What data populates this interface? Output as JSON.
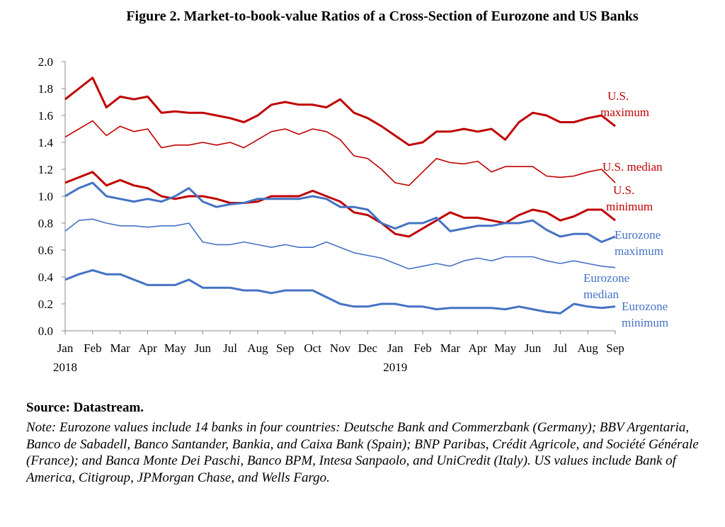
{
  "chart_data": {
    "type": "line",
    "title": "Figure 2. Market-to-book-value Ratios of a Cross-Section of Eurozone and US Banks",
    "xlabel": "",
    "ylabel": "",
    "ylim": [
      0,
      2.0
    ],
    "yticks": [
      "0.0",
      "0.2",
      "0.4",
      "0.6",
      "0.8",
      "1.0",
      "1.2",
      "1.4",
      "1.6",
      "1.8",
      "2.0"
    ],
    "xticks": [
      "Jan",
      "Feb",
      "Mar",
      "Apr",
      "May",
      "Jun",
      "Jul",
      "Aug",
      "Sep",
      "Oct",
      "Nov",
      "Dec",
      "Jan",
      "Feb",
      "Mar",
      "Apr",
      "May",
      "Jun",
      "Jul",
      "Aug",
      "Sep"
    ],
    "year_labels": [
      {
        "label": "2018",
        "month_index": 0
      },
      {
        "label": "2019",
        "month_index": 12
      }
    ],
    "x_unit": "months since Jan 2018 (semi-monthly samples)",
    "x_step": 0.5,
    "grid": false,
    "series": [
      {
        "name": "U.S. maximum",
        "color": "#C00000",
        "weight": "thick",
        "values": [
          1.72,
          1.8,
          1.88,
          1.66,
          1.74,
          1.72,
          1.74,
          1.62,
          1.63,
          1.62,
          1.62,
          1.6,
          1.58,
          1.55,
          1.6,
          1.68,
          1.7,
          1.68,
          1.68,
          1.66,
          1.72,
          1.62,
          1.58,
          1.52,
          1.45,
          1.38,
          1.4,
          1.48,
          1.48,
          1.5,
          1.48,
          1.5,
          1.42,
          1.55,
          1.62,
          1.6,
          1.55,
          1.55,
          1.58,
          1.6,
          1.52
        ]
      },
      {
        "name": "U.S. median",
        "color": "#C00000",
        "weight": "thin",
        "values": [
          1.44,
          1.5,
          1.56,
          1.45,
          1.52,
          1.48,
          1.5,
          1.36,
          1.38,
          1.38,
          1.4,
          1.38,
          1.4,
          1.36,
          1.42,
          1.48,
          1.5,
          1.46,
          1.5,
          1.48,
          1.42,
          1.3,
          1.28,
          1.2,
          1.1,
          1.08,
          1.18,
          1.28,
          1.25,
          1.24,
          1.26,
          1.18,
          1.22,
          1.22,
          1.22,
          1.15,
          1.14,
          1.15,
          1.18,
          1.2,
          1.1
        ]
      },
      {
        "name": "U.S. minimum",
        "color": "#C00000",
        "weight": "thick",
        "values": [
          1.1,
          1.14,
          1.18,
          1.08,
          1.12,
          1.08,
          1.06,
          1.0,
          0.98,
          1.0,
          1.0,
          0.98,
          0.95,
          0.95,
          0.96,
          1.0,
          1.0,
          1.0,
          1.04,
          1.0,
          0.96,
          0.88,
          0.86,
          0.8,
          0.72,
          0.7,
          0.76,
          0.82,
          0.88,
          0.84,
          0.84,
          0.82,
          0.8,
          0.86,
          0.9,
          0.88,
          0.82,
          0.85,
          0.9,
          0.9,
          0.82
        ]
      },
      {
        "name": "Eurozone maximum",
        "color": "#4472C4",
        "weight": "thick",
        "values": [
          1.0,
          1.06,
          1.1,
          1.0,
          0.98,
          0.96,
          0.98,
          0.96,
          1.0,
          1.06,
          0.96,
          0.92,
          0.94,
          0.95,
          0.98,
          0.98,
          0.98,
          0.98,
          1.0,
          0.98,
          0.92,
          0.92,
          0.9,
          0.8,
          0.76,
          0.8,
          0.8,
          0.84,
          0.74,
          0.76,
          0.78,
          0.78,
          0.8,
          0.8,
          0.82,
          0.75,
          0.7,
          0.72,
          0.72,
          0.66,
          0.7
        ]
      },
      {
        "name": "Eurozone median",
        "color": "#4472C4",
        "weight": "thin",
        "values": [
          0.74,
          0.82,
          0.83,
          0.8,
          0.78,
          0.78,
          0.77,
          0.78,
          0.78,
          0.8,
          0.66,
          0.64,
          0.64,
          0.66,
          0.64,
          0.62,
          0.64,
          0.62,
          0.62,
          0.66,
          0.62,
          0.58,
          0.56,
          0.54,
          0.5,
          0.46,
          0.48,
          0.5,
          0.48,
          0.52,
          0.54,
          0.52,
          0.55,
          0.55,
          0.55,
          0.52,
          0.5,
          0.52,
          0.5,
          0.48,
          0.47
        ]
      },
      {
        "name": "Eurozone minimum",
        "color": "#4472C4",
        "weight": "thick",
        "values": [
          0.38,
          0.42,
          0.45,
          0.42,
          0.42,
          0.38,
          0.34,
          0.34,
          0.34,
          0.38,
          0.32,
          0.32,
          0.32,
          0.3,
          0.3,
          0.28,
          0.3,
          0.3,
          0.3,
          0.25,
          0.2,
          0.18,
          0.18,
          0.2,
          0.2,
          0.18,
          0.18,
          0.16,
          0.17,
          0.17,
          0.17,
          0.17,
          0.16,
          0.18,
          0.16,
          0.14,
          0.13,
          0.2,
          0.18,
          0.17,
          0.18
        ]
      }
    ],
    "series_labels": [
      {
        "lines": [
          "U.S.",
          "maximum"
        ],
        "color": "#C00000"
      },
      {
        "lines": [
          "U.S. median"
        ],
        "color": "#C00000"
      },
      {
        "lines": [
          "U.S.",
          "minimum"
        ],
        "color": "#C00000"
      },
      {
        "lines": [
          "Eurozone",
          "maximum"
        ],
        "color": "#4472C4"
      },
      {
        "lines": [
          "Eurozone",
          "median"
        ],
        "color": "#4472C4"
      },
      {
        "lines": [
          "Eurozone",
          "minimum"
        ],
        "color": "#4472C4"
      }
    ]
  },
  "figure": {
    "title": "Figure 2. Market-to-book-value Ratios of a Cross-Section of Eurozone and US Banks",
    "source": "Source: Datastream.",
    "note": "Note: Eurozone values include 14 banks in four countries: Deutsche Bank and Commerzbank (Germany); BBV Argentaria, Banco de Sabadell, Banco Santander, Bankia, and Caixa Bank (Spain); BNP Paribas, Crédit Agricole, and Société Générale (France); and Banca Monte Dei Paschi, Banco BPM, Intesa Sanpaolo, and UniCredit (Italy). US values include Bank of America, Citigroup, JPMorgan Chase, and Wells Fargo."
  }
}
